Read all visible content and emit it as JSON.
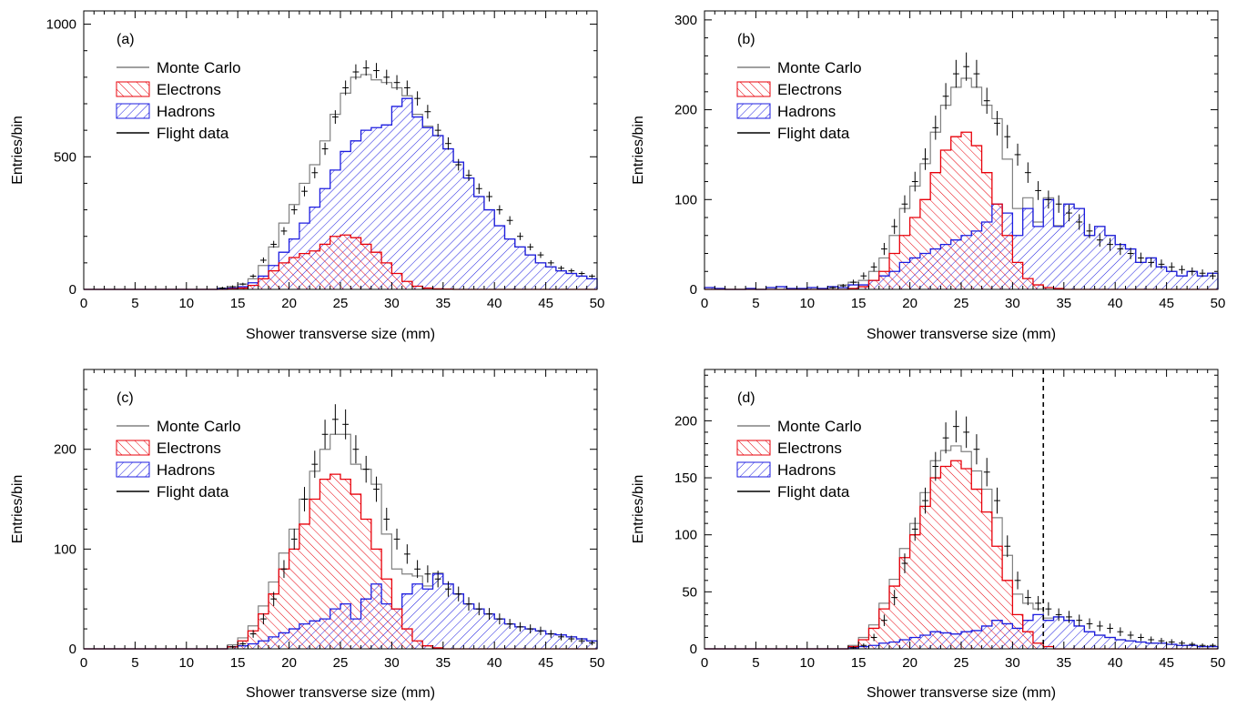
{
  "legend": [
    {
      "key": "mc",
      "label": "Monte Carlo"
    },
    {
      "key": "e",
      "label": "Electrons"
    },
    {
      "key": "h",
      "label": "Hadrons"
    },
    {
      "key": "data",
      "label": "Flight data"
    }
  ],
  "colors": {
    "mc": "#808080",
    "electrons": "#e8000a",
    "hadrons": "#1c1ce0",
    "data": "#000000"
  },
  "chart_data": [
    {
      "type": "histogram",
      "panel_label": "(a)",
      "xlabel": "Shower transverse size (mm)",
      "ylabel": "Entries/bin",
      "xlim": [
        0,
        50
      ],
      "ylim": [
        0,
        1050
      ],
      "xticks": [
        0,
        5,
        10,
        15,
        20,
        25,
        30,
        35,
        40,
        45,
        50
      ],
      "yticks": [
        0,
        500,
        1000
      ],
      "bin_width": 1,
      "legend_position": "top-left",
      "series": [
        {
          "name": "Electrons",
          "values": [
            0,
            0,
            0,
            0,
            0,
            0,
            0,
            0,
            0,
            0,
            0,
            0,
            0,
            0,
            2,
            5,
            15,
            40,
            70,
            100,
            120,
            135,
            145,
            170,
            200,
            205,
            195,
            170,
            140,
            100,
            60,
            30,
            12,
            5,
            2,
            1,
            0,
            0,
            0,
            0,
            0,
            0,
            0,
            0,
            0,
            0,
            0,
            0,
            0,
            0
          ]
        },
        {
          "name": "Hadrons",
          "values": [
            0,
            0,
            0,
            0,
            0,
            0,
            0,
            0,
            0,
            0,
            0,
            0,
            0,
            3,
            5,
            10,
            25,
            50,
            90,
            140,
            190,
            250,
            310,
            380,
            450,
            520,
            560,
            600,
            610,
            620,
            690,
            720,
            650,
            610,
            580,
            530,
            480,
            420,
            350,
            300,
            240,
            190,
            160,
            130,
            100,
            85,
            70,
            60,
            50,
            40
          ]
        },
        {
          "name": "Monte Carlo",
          "values": [
            0,
            0,
            0,
            0,
            0,
            0,
            0,
            0,
            0,
            0,
            0,
            0,
            0,
            5,
            10,
            20,
            40,
            90,
            160,
            250,
            320,
            400,
            470,
            560,
            660,
            740,
            800,
            810,
            790,
            780,
            760,
            730,
            660,
            615,
            580,
            530,
            480,
            420,
            350,
            300,
            240,
            190,
            160,
            130,
            100,
            85,
            70,
            60,
            50,
            40
          ]
        },
        {
          "name": "Flight data",
          "values": [
            0,
            0,
            0,
            0,
            0,
            0,
            0,
            0,
            0,
            0,
            0,
            0,
            0,
            5,
            10,
            20,
            50,
            110,
            170,
            220,
            300,
            370,
            440,
            530,
            650,
            760,
            820,
            835,
            825,
            800,
            780,
            760,
            720,
            670,
            600,
            550,
            470,
            430,
            380,
            350,
            300,
            260,
            200,
            160,
            130,
            100,
            80,
            70,
            60,
            50
          ]
        }
      ]
    },
    {
      "type": "histogram",
      "panel_label": "(b)",
      "xlabel": "Shower transverse size (mm)",
      "ylabel": "Entries/bin",
      "xlim": [
        0,
        50
      ],
      "ylim": [
        0,
        310
      ],
      "xticks": [
        0,
        5,
        10,
        15,
        20,
        25,
        30,
        35,
        40,
        45,
        50
      ],
      "yticks": [
        0,
        100,
        200,
        300
      ],
      "bin_width": 1,
      "legend_position": "top-left",
      "series": [
        {
          "name": "Electrons",
          "values": [
            0,
            0,
            0,
            0,
            0,
            0,
            0,
            0,
            0,
            0,
            0,
            0,
            0,
            0,
            1,
            3,
            10,
            20,
            40,
            60,
            80,
            100,
            130,
            155,
            170,
            175,
            160,
            130,
            95,
            60,
            30,
            12,
            5,
            2,
            1,
            0,
            0,
            0,
            0,
            0,
            0,
            0,
            0,
            0,
            0,
            0,
            0,
            0,
            0,
            0
          ]
        },
        {
          "name": "Hadrons",
          "values": [
            2,
            1,
            0,
            0,
            1,
            0,
            2,
            3,
            1,
            1,
            2,
            1,
            3,
            2,
            5,
            5,
            10,
            15,
            20,
            30,
            35,
            40,
            45,
            50,
            55,
            60,
            65,
            75,
            95,
            85,
            60,
            90,
            70,
            100,
            70,
            95,
            90,
            60,
            70,
            60,
            50,
            45,
            30,
            35,
            25,
            20,
            15,
            20,
            15,
            18
          ]
        },
        {
          "name": "Monte Carlo",
          "values": [
            2,
            1,
            0,
            0,
            1,
            0,
            2,
            3,
            1,
            1,
            2,
            1,
            3,
            5,
            8,
            10,
            20,
            35,
            60,
            90,
            115,
            140,
            175,
            205,
            225,
            235,
            225,
            205,
            190,
            145,
            90,
            102,
            75,
            102,
            71,
            95,
            90,
            60,
            70,
            60,
            50,
            45,
            30,
            35,
            25,
            20,
            15,
            20,
            15,
            18
          ]
        },
        {
          "name": "Flight data",
          "values": [
            0,
            0,
            0,
            0,
            0,
            0,
            0,
            0,
            0,
            0,
            0,
            0,
            2,
            4,
            8,
            15,
            25,
            45,
            70,
            95,
            120,
            145,
            180,
            215,
            240,
            248,
            240,
            210,
            185,
            170,
            150,
            130,
            110,
            100,
            95,
            85,
            75,
            65,
            55,
            50,
            45,
            40,
            35,
            30,
            28,
            25,
            22,
            20,
            18,
            15
          ]
        }
      ]
    },
    {
      "type": "histogram",
      "panel_label": "(c)",
      "xlabel": "Shower transverse size (mm)",
      "ylabel": "Entries/bin",
      "xlim": [
        0,
        50
      ],
      "ylim": [
        0,
        280
      ],
      "xticks": [
        0,
        5,
        10,
        15,
        20,
        25,
        30,
        35,
        40,
        45,
        50
      ],
      "yticks": [
        0,
        100,
        200
      ],
      "bin_width": 1,
      "legend_position": "top-left",
      "series": [
        {
          "name": "Electrons",
          "values": [
            0,
            0,
            0,
            0,
            0,
            0,
            0,
            0,
            0,
            0,
            0,
            0,
            0,
            0,
            2,
            8,
            18,
            35,
            55,
            80,
            100,
            125,
            150,
            170,
            175,
            170,
            155,
            130,
            100,
            70,
            40,
            20,
            8,
            3,
            1,
            0,
            0,
            0,
            0,
            0,
            0,
            0,
            0,
            0,
            0,
            0,
            0,
            0,
            0,
            0
          ]
        },
        {
          "name": "Hadrons",
          "values": [
            0,
            0,
            0,
            0,
            0,
            0,
            0,
            0,
            0,
            0,
            0,
            0,
            0,
            0,
            2,
            3,
            5,
            8,
            12,
            16,
            20,
            25,
            28,
            30,
            40,
            45,
            30,
            50,
            65,
            45,
            40,
            55,
            65,
            60,
            75,
            65,
            55,
            45,
            40,
            35,
            30,
            25,
            22,
            20,
            18,
            15,
            14,
            12,
            10,
            8
          ]
        },
        {
          "name": "Monte Carlo",
          "values": [
            0,
            0,
            0,
            0,
            0,
            0,
            0,
            0,
            0,
            0,
            0,
            0,
            0,
            0,
            4,
            11,
            23,
            43,
            67,
            96,
            120,
            150,
            178,
            200,
            215,
            215,
            185,
            180,
            165,
            115,
            80,
            75,
            73,
            63,
            76,
            65,
            55,
            45,
            40,
            35,
            30,
            25,
            22,
            20,
            18,
            15,
            14,
            12,
            10,
            8
          ]
        },
        {
          "name": "Flight data",
          "values": [
            0,
            0,
            0,
            0,
            0,
            0,
            0,
            0,
            0,
            0,
            0,
            0,
            0,
            0,
            2,
            5,
            15,
            30,
            50,
            80,
            110,
            150,
            185,
            215,
            230,
            225,
            200,
            180,
            160,
            130,
            110,
            95,
            80,
            75,
            70,
            60,
            55,
            45,
            40,
            35,
            30,
            25,
            22,
            20,
            18,
            15,
            12,
            10,
            8,
            6
          ]
        }
      ]
    },
    {
      "type": "histogram",
      "panel_label": "(d)",
      "xlabel": "Shower transverse size (mm)",
      "ylabel": "Entries/bin",
      "xlim": [
        0,
        50
      ],
      "ylim": [
        0,
        245
      ],
      "xticks": [
        0,
        5,
        10,
        15,
        20,
        25,
        30,
        35,
        40,
        45,
        50
      ],
      "yticks": [
        0,
        50,
        100,
        150,
        200
      ],
      "bin_width": 1,
      "legend_position": "top-left",
      "cut_line_x": 33,
      "series": [
        {
          "name": "Electrons",
          "values": [
            0,
            0,
            0,
            0,
            0,
            0,
            0,
            0,
            0,
            0,
            0,
            0,
            0,
            0,
            2,
            8,
            18,
            35,
            55,
            80,
            100,
            125,
            150,
            160,
            165,
            158,
            140,
            120,
            90,
            60,
            30,
            15,
            5,
            2,
            0,
            0,
            0,
            0,
            0,
            0,
            0,
            0,
            0,
            0,
            0,
            0,
            0,
            0,
            0,
            0
          ]
        },
        {
          "name": "Hadrons",
          "values": [
            0,
            0,
            0,
            0,
            0,
            0,
            0,
            0,
            0,
            0,
            0,
            0,
            0,
            0,
            1,
            2,
            3,
            5,
            6,
            8,
            10,
            12,
            15,
            14,
            13,
            15,
            16,
            20,
            25,
            22,
            18,
            25,
            30,
            25,
            28,
            25,
            20,
            15,
            12,
            10,
            8,
            7,
            6,
            5,
            5,
            4,
            3,
            3,
            2,
            2
          ]
        },
        {
          "name": "Monte Carlo",
          "values": [
            0,
            0,
            0,
            0,
            0,
            0,
            0,
            0,
            0,
            0,
            0,
            0,
            0,
            0,
            3,
            10,
            21,
            40,
            61,
            88,
            110,
            137,
            165,
            174,
            178,
            173,
            156,
            140,
            115,
            82,
            48,
            40,
            35,
            27,
            28,
            25,
            20,
            15,
            12,
            10,
            8,
            7,
            6,
            5,
            5,
            4,
            3,
            3,
            2,
            2
          ]
        },
        {
          "name": "Flight data",
          "values": [
            0,
            0,
            0,
            0,
            0,
            0,
            0,
            0,
            0,
            0,
            0,
            0,
            0,
            0,
            1,
            3,
            10,
            25,
            45,
            75,
            105,
            130,
            160,
            185,
            195,
            190,
            175,
            155,
            130,
            90,
            60,
            45,
            40,
            35,
            30,
            28,
            25,
            22,
            20,
            18,
            15,
            12,
            10,
            8,
            7,
            6,
            5,
            4,
            3,
            3
          ]
        }
      ]
    }
  ]
}
